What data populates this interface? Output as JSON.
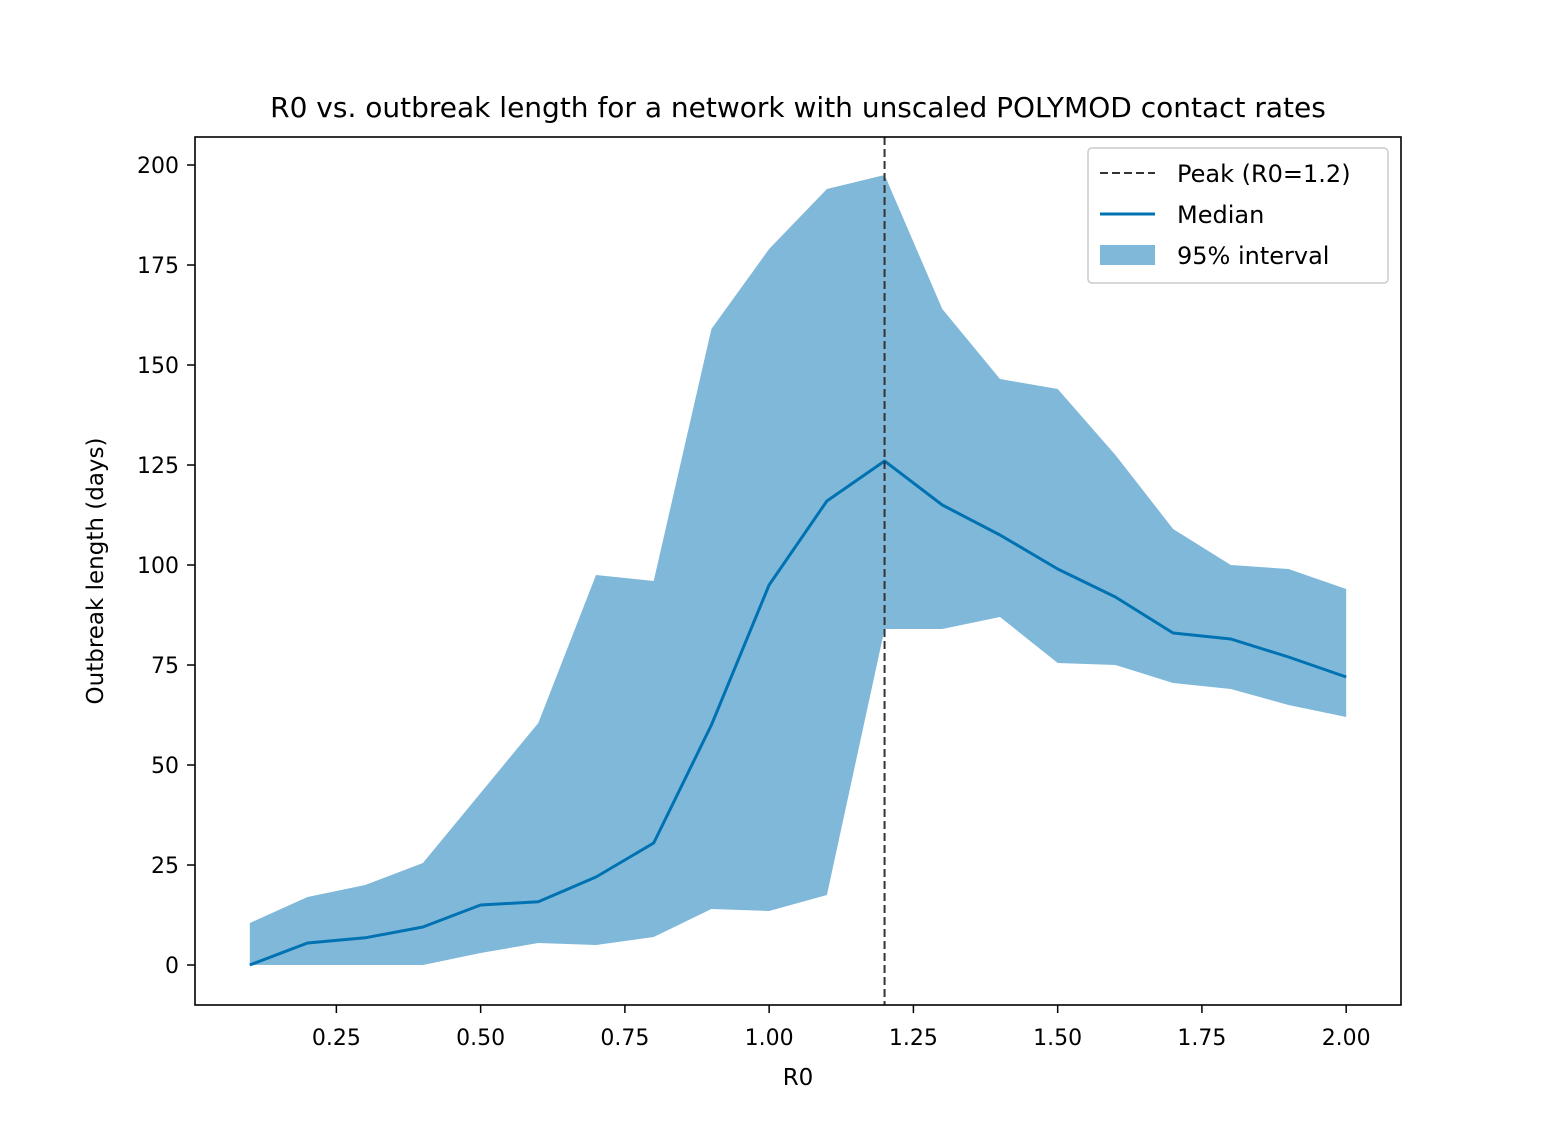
{
  "chart_data": {
    "type": "line",
    "title": "R0 vs. outbreak length for a network with unscaled POLYMOD contact rates",
    "xlabel": "R0",
    "ylabel": "Outbreak length (days)",
    "xlim": [
      0.005,
      2.095
    ],
    "ylim": [
      -10,
      207
    ],
    "xticks": [
      0.25,
      0.5,
      0.75,
      1.0,
      1.25,
      1.5,
      1.75,
      2.0
    ],
    "xtick_labels": [
      "0.25",
      "0.50",
      "0.75",
      "1.00",
      "1.25",
      "1.50",
      "1.75",
      "2.00"
    ],
    "yticks": [
      0,
      25,
      50,
      75,
      100,
      125,
      150,
      175,
      200
    ],
    "ytick_labels": [
      "0",
      "25",
      "50",
      "75",
      "100",
      "125",
      "150",
      "175",
      "200"
    ],
    "x": [
      0.1,
      0.2,
      0.3,
      0.4,
      0.5,
      0.6,
      0.7,
      0.8,
      0.9,
      1.0,
      1.1,
      1.2,
      1.3,
      1.4,
      1.5,
      1.6,
      1.7,
      1.8,
      1.9,
      2.0
    ],
    "series": [
      {
        "name": "Median",
        "type": "line",
        "color": "#0072b2",
        "values": [
          0,
          5.5,
          6.8,
          9.5,
          15,
          15.8,
          22,
          30.5,
          60,
          95,
          116,
          126,
          115,
          107.5,
          99,
          92,
          83,
          81.5,
          77,
          72
        ]
      },
      {
        "name": "95% interval",
        "type": "area",
        "color": "#80b8d9",
        "lower": [
          0,
          0,
          0,
          0,
          3,
          5.5,
          5,
          7,
          14,
          13.5,
          17.5,
          84,
          84,
          87,
          75.5,
          75,
          70.5,
          69,
          65,
          62
        ],
        "upper": [
          10.5,
          17,
          20,
          25.5,
          43,
          60.5,
          97.5,
          96,
          159,
          179,
          194,
          197.5,
          164,
          146.5,
          144,
          127.5,
          109,
          100,
          99,
          94
        ]
      }
    ],
    "reference_line": {
      "name": "Peak (R0=1.2)",
      "x": 1.2,
      "style": "dashed",
      "color": "#333333"
    },
    "legend": {
      "placement": "top-right",
      "entries": [
        "Peak (R0=1.2)",
        "Median",
        "95% interval"
      ]
    },
    "grid": false
  }
}
